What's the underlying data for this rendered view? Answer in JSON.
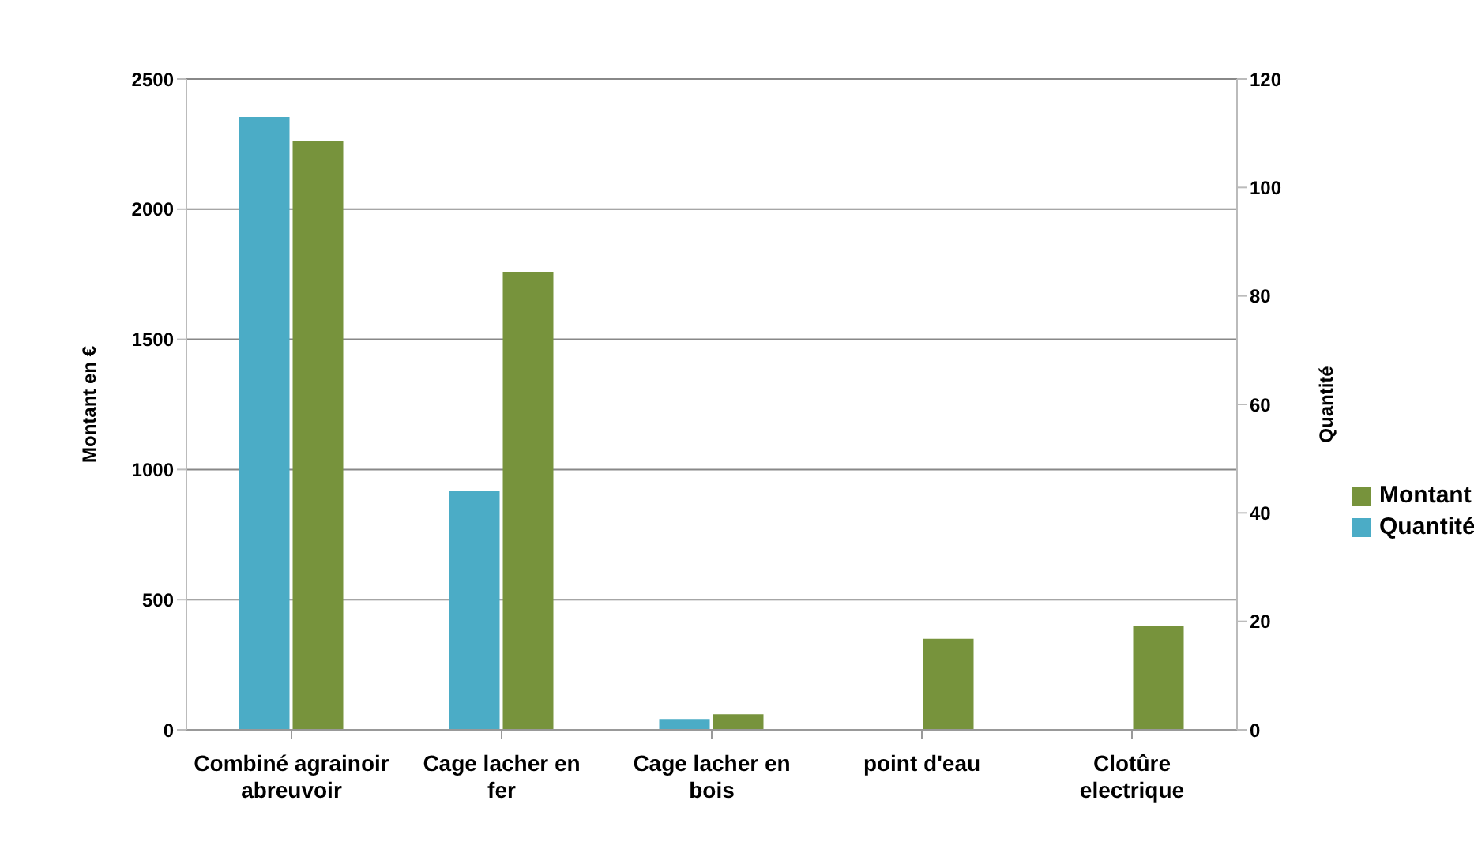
{
  "chart_data": {
    "type": "bar",
    "categories": [
      "Combiné agrainoir abreuvoir",
      "Cage lacher en fer",
      "Cage lacher en bois",
      "point d'eau",
      "Clotûre electrique"
    ],
    "ylabel": "Montant en €",
    "y2label": "Quantité",
    "series": [
      {
        "name": "Quantité",
        "color": "#4bacc6",
        "axis": "y2",
        "values": [
          113,
          44,
          2,
          null,
          null
        ]
      },
      {
        "name": "Montant",
        "color": "#77933c",
        "values": [
          2260,
          1760,
          60,
          350,
          400
        ]
      }
    ],
    "ylim": [
      0,
      2500
    ],
    "yticks": [
      0,
      500,
      1000,
      1500,
      2000,
      2500
    ],
    "y2lim": [
      0,
      120
    ],
    "y2ticks": [
      0,
      20,
      40,
      60,
      80,
      100,
      120
    ],
    "grid": "y",
    "legend": "right"
  }
}
